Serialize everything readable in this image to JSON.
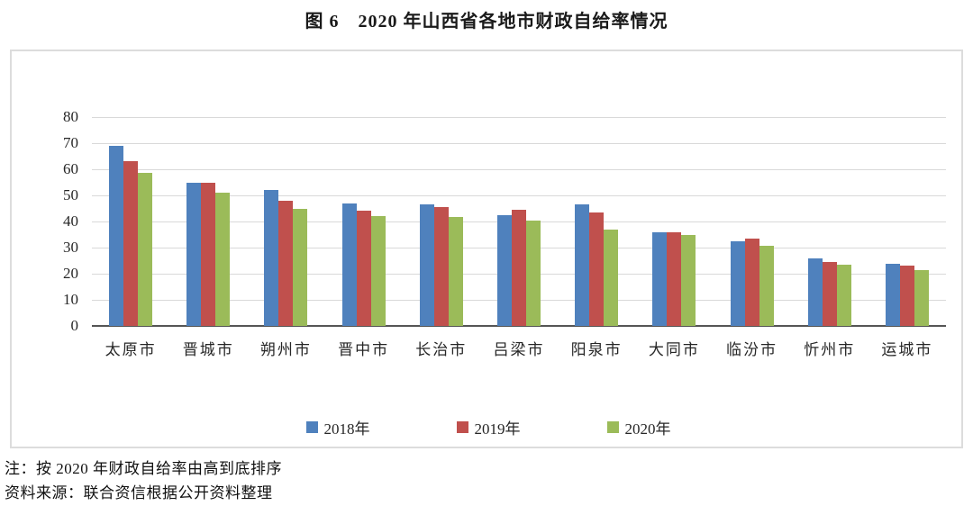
{
  "title": "图 6　2020 年山西省各地市财政自给率情况",
  "notes": {
    "line1": "注：按 2020 年财政自给率由高到底排序",
    "line2": "资料来源：联合资信根据公开资料整理"
  },
  "colors": {
    "series_2018": "#4F81BD",
    "series_2019": "#C0504D",
    "series_2020": "#9BBB59",
    "gridline": "#D9D9D9",
    "axis_line": "#555555",
    "chart_border": "#DCDCDC"
  },
  "chart_data": {
    "type": "bar",
    "title": "图 6　2020 年山西省各地市财政自给率情况",
    "categories": [
      "太原市",
      "晋城市",
      "朔州市",
      "晋中市",
      "长治市",
      "吕梁市",
      "阳泉市",
      "大同市",
      "临汾市",
      "忻州市",
      "运城市"
    ],
    "series": [
      {
        "name": "2018年",
        "color": "#4F81BD",
        "values": [
          68.8,
          55.0,
          52.0,
          46.8,
          46.6,
          42.5,
          46.6,
          36.0,
          32.5,
          25.8,
          23.9
        ]
      },
      {
        "name": "2019年",
        "color": "#C0504D",
        "values": [
          63.2,
          54.8,
          47.8,
          44.0,
          45.4,
          44.5,
          43.4,
          36.0,
          33.6,
          24.4,
          23.0
        ]
      },
      {
        "name": "2020年",
        "color": "#9BBB59",
        "values": [
          58.5,
          51.0,
          45.0,
          42.0,
          41.8,
          40.5,
          36.8,
          35.0,
          30.8,
          23.4,
          21.5
        ]
      }
    ],
    "xlabel": "",
    "ylabel": "",
    "ylim": [
      0,
      80
    ],
    "ytick_step": 10,
    "grid": true,
    "legend_position": "bottom"
  }
}
